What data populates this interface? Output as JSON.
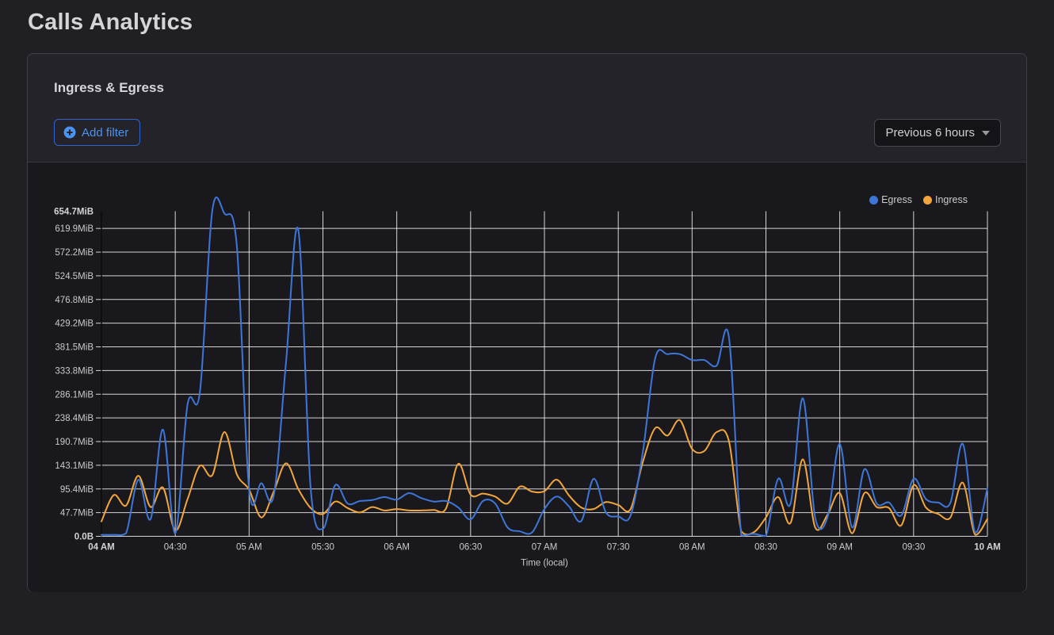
{
  "page": {
    "title": "Calls Analytics"
  },
  "panel": {
    "title": "Ingress & Egress",
    "add_filter": {
      "label": "Add filter",
      "icon": "plus-circle-icon"
    },
    "time_range": {
      "label": "Previous 6 hours",
      "icon": "chevron-down-icon"
    }
  },
  "colors": {
    "egress": "#3d76d8",
    "ingress": "#f2a53c",
    "accent_blue": "#4b93f1",
    "grid": "rgba(255,255,255,0.82)",
    "axis": "#0a0a0d",
    "tick_label": "#c9cacc",
    "panel_bg": "#19191d",
    "card_bg": "#232329",
    "page_bg": "#202024"
  },
  "chart_data": {
    "type": "line",
    "title": "Ingress & Egress",
    "xlabel": "Time (local)",
    "ylabel": "",
    "unit": "MiB",
    "ylim": [
      0,
      654.7
    ],
    "y_gridline_step_mib": 47.7,
    "grid": true,
    "legend_position": "top-right",
    "legend": [
      "Egress",
      "Ingress"
    ],
    "x_tick_labels": [
      "04 AM",
      "04:30",
      "05 AM",
      "05:30",
      "06 AM",
      "06:30",
      "07 AM",
      "07:30",
      "08 AM",
      "08:30",
      "09 AM",
      "09:30",
      "10 AM"
    ],
    "y_tick_labels": [
      "0.0B",
      "47.7MiB",
      "95.4MiB",
      "143.1MiB",
      "190.7MiB",
      "238.4MiB",
      "286.1MiB",
      "333.8MiB",
      "381.5MiB",
      "429.2MiB",
      "476.8MiB",
      "524.5MiB",
      "572.2MiB",
      "619.9MiB",
      "654.7MiB"
    ],
    "times": [
      "04:00",
      "04:05",
      "04:10",
      "04:15",
      "04:20",
      "04:25",
      "04:30",
      "04:35",
      "04:40",
      "04:45",
      "04:50",
      "04:55",
      "05:00",
      "05:05",
      "05:10",
      "05:15",
      "05:20",
      "05:25",
      "05:30",
      "05:35",
      "05:40",
      "05:45",
      "05:50",
      "05:55",
      "06:00",
      "06:05",
      "06:10",
      "06:15",
      "06:20",
      "06:25",
      "06:30",
      "06:35",
      "06:40",
      "06:45",
      "06:50",
      "06:55",
      "07:00",
      "07:05",
      "07:10",
      "07:15",
      "07:20",
      "07:25",
      "07:30",
      "07:35",
      "07:40",
      "07:45",
      "07:50",
      "07:55",
      "08:00",
      "08:05",
      "08:10",
      "08:15",
      "08:20",
      "08:25",
      "08:30",
      "08:35",
      "08:40",
      "08:45",
      "08:50",
      "08:55",
      "09:00",
      "09:05",
      "09:10",
      "09:15",
      "09:20",
      "09:25",
      "09:30",
      "09:35",
      "09:40",
      "09:45",
      "09:50",
      "09:55",
      "10:00"
    ],
    "series": [
      {
        "name": "Egress",
        "color": "#3d76d8",
        "values": [
          3,
          3,
          6,
          114,
          35,
          215,
          6,
          266,
          290,
          654.7,
          650,
          586,
          95,
          107,
          82,
          350,
          617,
          97,
          15,
          103,
          66,
          71,
          73,
          79,
          74,
          87,
          77,
          70,
          71,
          58,
          34,
          71,
          66,
          18,
          10,
          8,
          55,
          80,
          60,
          31,
          116,
          48,
          40,
          42,
          170,
          359,
          367,
          367,
          355,
          355,
          344,
          400,
          2,
          5,
          1,
          116,
          66,
          278,
          38,
          38,
          186,
          18,
          135,
          66,
          68,
          42,
          116,
          75,
          68,
          68,
          186,
          8,
          97
        ]
      },
      {
        "name": "Ingress",
        "color": "#f2a53c",
        "values": [
          30,
          83,
          62,
          122,
          59,
          98,
          12,
          75,
          142,
          123,
          210,
          125,
          94,
          38,
          90,
          147,
          95,
          57,
          45,
          70,
          57,
          48,
          59,
          52,
          55,
          52,
          52,
          53,
          56,
          146,
          84,
          86,
          80,
          66,
          100,
          90,
          91,
          114,
          82,
          58,
          55,
          69,
          63,
          55,
          150,
          218,
          203,
          234,
          176,
          172,
          210,
          191,
          10,
          8,
          38,
          79,
          27,
          155,
          18,
          43,
          87,
          6,
          87,
          59,
          57,
          22,
          103,
          58,
          45,
          38,
          108,
          3,
          35
        ]
      }
    ]
  }
}
